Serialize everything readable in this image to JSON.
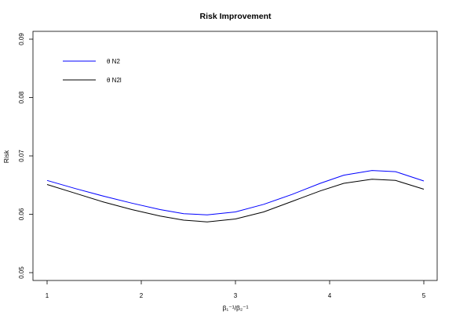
{
  "chart_data": {
    "type": "line",
    "title": "Risk Improvement",
    "xlabel": "β₁⁻¹/β₂⁻¹",
    "ylabel": "Risk",
    "xlim": [
      1,
      5
    ],
    "ylim": [
      0.05,
      0.09
    ],
    "xticks": [
      1,
      2,
      3,
      4,
      5
    ],
    "yticks": [
      0.05,
      0.06,
      0.07,
      0.08,
      0.09
    ],
    "xtick_labels": [
      "1",
      "2",
      "3",
      "4",
      "5"
    ],
    "ytick_labels": [
      "0.05",
      "0.06",
      "0.07",
      "0.08",
      "0.09"
    ],
    "grid": false,
    "legend_position": "top-left",
    "series": [
      {
        "name": "θ N2",
        "color": "#0000ff",
        "x": [
          1.0,
          1.3,
          1.6,
          1.9,
          2.2,
          2.45,
          2.7,
          3.0,
          3.3,
          3.6,
          3.9,
          4.15,
          4.45,
          4.7,
          5.0
        ],
        "y": [
          0.0658,
          0.0644,
          0.0631,
          0.0619,
          0.0608,
          0.0601,
          0.0599,
          0.0604,
          0.0617,
          0.0634,
          0.0653,
          0.0667,
          0.0675,
          0.0673,
          0.0657
        ]
      },
      {
        "name": "θ N2l",
        "color": "#000000",
        "x": [
          1.0,
          1.3,
          1.6,
          1.9,
          2.2,
          2.45,
          2.7,
          3.0,
          3.3,
          3.6,
          3.9,
          4.15,
          4.45,
          4.7,
          5.0
        ],
        "y": [
          0.0651,
          0.0636,
          0.0621,
          0.0608,
          0.0597,
          0.059,
          0.0587,
          0.0592,
          0.0604,
          0.0622,
          0.064,
          0.0653,
          0.066,
          0.0658,
          0.0643
        ]
      }
    ]
  }
}
